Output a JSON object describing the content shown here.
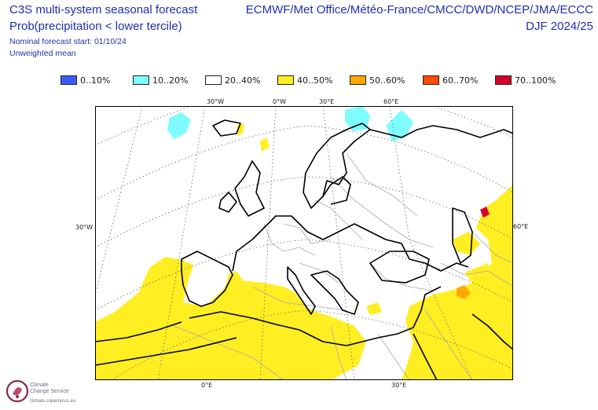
{
  "header": {
    "title_line1": "C3S multi-system seasonal forecast",
    "title_line2": "Prob(precipitation < lower tercile)",
    "forecast_start": "Nominal forecast start: 01/10/24",
    "weighting": "Unweighted mean",
    "models": "ECMWF/Met Office/Météo-France/CMCC/DWD/NCEP/JMA/ECCC",
    "period": "DJF 2024/25"
  },
  "legend": [
    {
      "label": "0..10%",
      "color": "#3a5cff"
    },
    {
      "label": "10..20%",
      "color": "#7ffcff"
    },
    {
      "label": "20..40%",
      "color": "#ffffff"
    },
    {
      "label": "40..50%",
      "color": "#ffee22"
    },
    {
      "label": "50..60%",
      "color": "#ffa900"
    },
    {
      "label": "60..70%",
      "color": "#ff4a00"
    },
    {
      "label": "70..100%",
      "color": "#d6002b"
    }
  ],
  "axes": {
    "top": [
      "30°W",
      "0°W",
      "30°E",
      "60°E"
    ],
    "left": "30°W",
    "right": "60°E",
    "bottom": [
      "0°E",
      "30°E"
    ]
  },
  "logo": {
    "line1": "Climate",
    "line2": "Change Service",
    "url": "climate.copernicus.eu"
  },
  "colors": {
    "land_yellow": "#ffee22",
    "ocean_cyan": "#7ffcff",
    "orange": "#ffa900",
    "red": "#d6002b",
    "border": "#a9a9a9",
    "coast": "#000000"
  }
}
